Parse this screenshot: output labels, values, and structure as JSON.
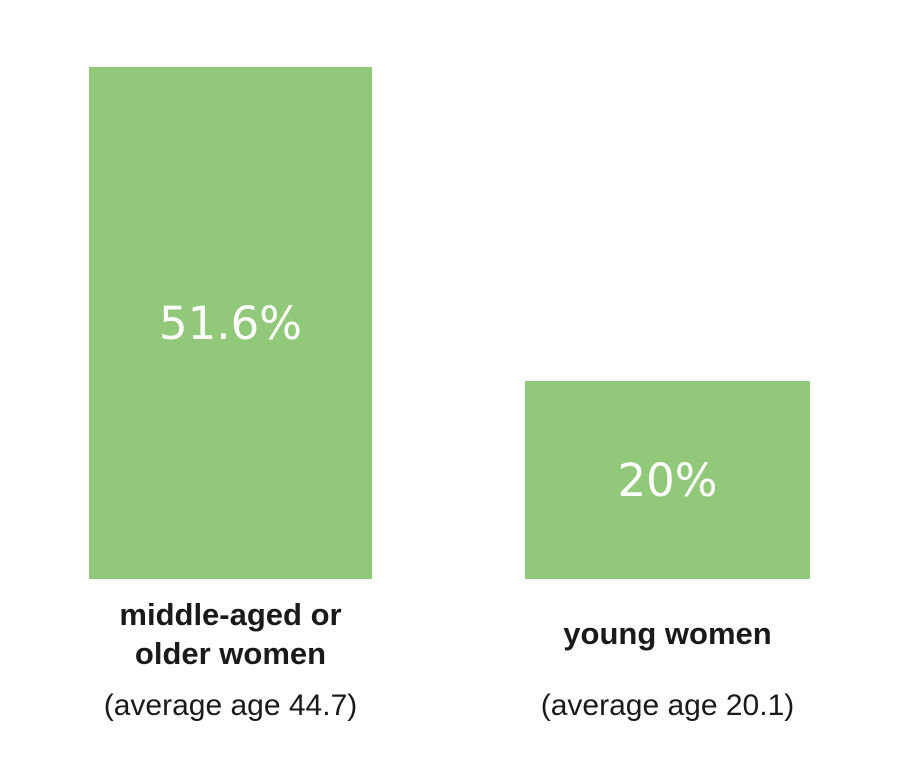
{
  "colors": {
    "background": "#ffffff",
    "bar": "#91c87a",
    "value_text": "#ffffff",
    "label_text": "#1a1a1a"
  },
  "chart_data": {
    "type": "bar",
    "categories": [
      "middle-aged or older women",
      "young women"
    ],
    "values": [
      51.6,
      20
    ],
    "value_labels": [
      "51.6%",
      "20%"
    ],
    "sublabels": [
      "(average age 44.7)",
      "(average age 20.1)"
    ],
    "title": "",
    "xlabel": "",
    "ylabel": "",
    "ylim": [
      0,
      52
    ],
    "grid": false,
    "legend": false,
    "value_label_position": "center-of-bar",
    "bar_color": "#91c87a"
  }
}
